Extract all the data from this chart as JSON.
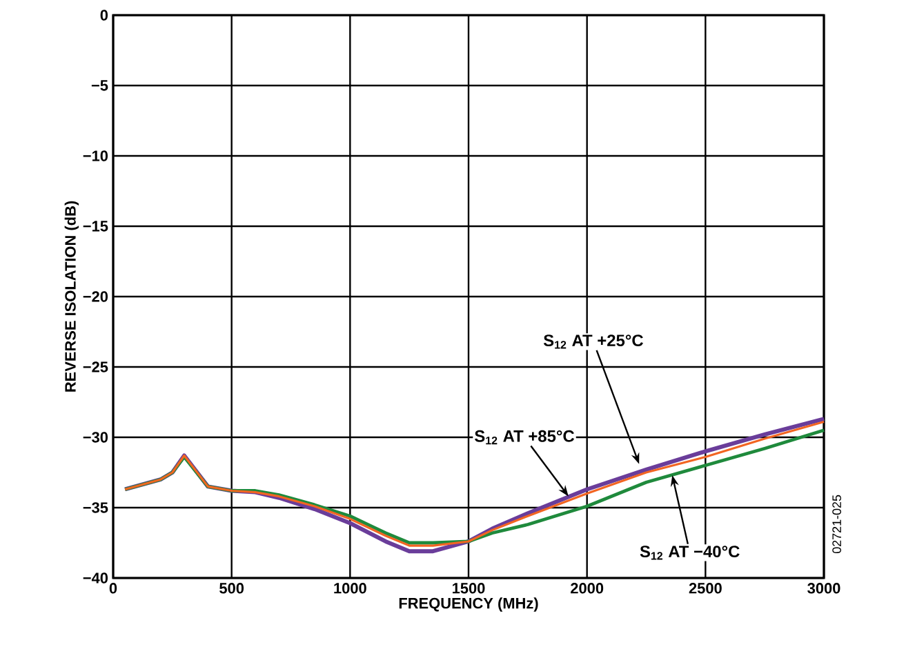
{
  "chart_data": {
    "type": "line",
    "xlabel": "FREQUENCY (MHz)",
    "ylabel": "REVERSE ISOLATION (dB)",
    "xlim": [
      0,
      3000
    ],
    "ylim": [
      -40,
      0
    ],
    "xticks": [
      0,
      500,
      1000,
      1500,
      2000,
      2500,
      3000
    ],
    "yticks": [
      {
        "value": -40,
        "label": "−40"
      },
      {
        "value": -35,
        "label": "−35"
      },
      {
        "value": -30,
        "label": "−30"
      },
      {
        "value": -25,
        "label": "−25"
      },
      {
        "value": -20,
        "label": "−20"
      },
      {
        "value": -15,
        "label": "−15"
      },
      {
        "value": -10,
        "label": "−10"
      },
      {
        "value": -5,
        "label": "−5"
      },
      {
        "value": 0,
        "label": "0"
      }
    ],
    "grid": true,
    "line_style": "solid",
    "marker": "none",
    "x": [
      50,
      200,
      250,
      300,
      400,
      500,
      600,
      700,
      850,
      1000,
      1150,
      1250,
      1350,
      1500,
      1600,
      1750,
      2000,
      2250,
      2500,
      2750,
      3000
    ],
    "series": [
      {
        "color": "#1f8a3c",
        "values": [
          -33.7,
          -33.0,
          -32.5,
          -31.4,
          -33.5,
          -33.8,
          -33.8,
          -34.1,
          -34.8,
          -35.6,
          -36.8,
          -37.5,
          -37.5,
          -37.4,
          -36.8,
          -36.2,
          -34.9,
          -33.2,
          -32.0,
          -30.8,
          -29.5
        ]
      },
      {
        "color": "#f26522",
        "values": [
          -33.7,
          -33.0,
          -32.5,
          -31.3,
          -33.5,
          -33.8,
          -33.9,
          -34.2,
          -34.9,
          -35.8,
          -37.0,
          -37.7,
          -37.7,
          -37.4,
          -36.6,
          -35.6,
          -34.0,
          -32.5,
          -31.4,
          -30.1,
          -28.9
        ]
      },
      {
        "color": "#6a3d9a",
        "values": [
          -33.7,
          -33.0,
          -32.5,
          -31.3,
          -33.5,
          -33.8,
          -33.9,
          -34.3,
          -35.1,
          -36.1,
          -37.4,
          -38.1,
          -38.1,
          -37.4,
          -36.5,
          -35.4,
          -33.7,
          -32.3,
          -31.0,
          -29.8,
          -28.7
        ]
      }
    ],
    "annotations": [
      {
        "text": "S$_{12}$ AT +25°C",
        "x": 2220,
        "y": -31.9
      },
      {
        "text": "S$_{12}$ AT +85°C",
        "x": 1922,
        "y": -34.2
      },
      {
        "text": "S$_{12}$ AT −40°C",
        "x": 2360,
        "y": -32.7
      },
      "02721-025"
    ]
  }
}
